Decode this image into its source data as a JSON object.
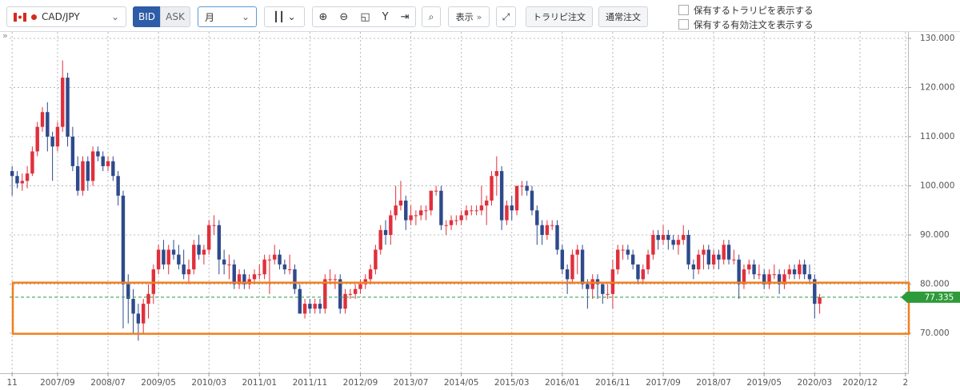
{
  "toolbar": {
    "pair": "CAD/JPY",
    "bid": "BID",
    "ask": "ASK",
    "period": "月",
    "display": "表示",
    "trarep_order": "トラリピ注文",
    "normal_order": "通常注文",
    "show_trarep": "保有するトラリピを表示する",
    "show_orders": "保有する有効注文を表示する",
    "collapse": "»"
  },
  "chart_data": {
    "type": "candlestick",
    "categories": [
      "11",
      null,
      null,
      null,
      null,
      null,
      null,
      null,
      null,
      "2007/09",
      null,
      null,
      null,
      null,
      null,
      null,
      null,
      null,
      null,
      "2008/07",
      null,
      null,
      null,
      null,
      null,
      null,
      null,
      null,
      null,
      "2009/05",
      null,
      null,
      null,
      null,
      null,
      null,
      null,
      null,
      null,
      "2010/03",
      null,
      null,
      null,
      null,
      null,
      null,
      null,
      null,
      null,
      "2011/01",
      null,
      null,
      null,
      null,
      null,
      null,
      null,
      null,
      null,
      "2011/11",
      null,
      null,
      null,
      null,
      null,
      null,
      null,
      null,
      null,
      "2012/09",
      null,
      null,
      null,
      null,
      null,
      null,
      null,
      null,
      null,
      "2013/07",
      null,
      null,
      null,
      null,
      null,
      null,
      null,
      null,
      null,
      "2014/05",
      null,
      null,
      null,
      null,
      null,
      null,
      null,
      null,
      null,
      "2015/03",
      null,
      null,
      null,
      null,
      null,
      null,
      null,
      null,
      null,
      "2016/01",
      null,
      null,
      null,
      null,
      null,
      null,
      null,
      null,
      null,
      "2016/11",
      null,
      null,
      null,
      null,
      null,
      null,
      null,
      null,
      null,
      "2017/09",
      null,
      null,
      null,
      null,
      null,
      null,
      null,
      null,
      null,
      "2018/07",
      null,
      null,
      null,
      null,
      null,
      null,
      null,
      null,
      null,
      "2019/05",
      null,
      null,
      null,
      null,
      null,
      null,
      null,
      null,
      null,
      "2020/03",
      null,
      null,
      null,
      null,
      null,
      null,
      null,
      null,
      "2020/12",
      null,
      null,
      null,
      null,
      null,
      null,
      null,
      null,
      "2"
    ],
    "ohlc": [
      [
        103,
        104,
        98,
        102
      ],
      [
        102,
        103,
        99.5,
        100.5
      ],
      [
        100.5,
        102.5,
        99,
        101
      ],
      [
        101,
        104,
        99.5,
        102.5
      ],
      [
        102.5,
        108,
        102,
        107
      ],
      [
        107,
        113,
        106,
        112
      ],
      [
        112,
        116,
        111,
        115
      ],
      [
        115,
        117,
        107,
        110
      ],
      [
        110,
        111,
        101,
        108
      ],
      [
        108,
        113,
        107,
        112
      ],
      [
        112,
        125.5,
        111,
        122
      ],
      [
        122,
        123,
        108,
        110
      ],
      [
        110,
        112,
        103,
        104
      ],
      [
        104,
        106,
        98,
        99
      ],
      [
        99,
        106,
        98,
        105
      ],
      [
        105,
        106,
        99,
        101
      ],
      [
        101,
        108,
        100,
        107
      ],
      [
        107,
        108,
        105,
        106
      ],
      [
        106,
        107,
        103,
        104
      ],
      [
        104,
        106,
        103,
        105
      ],
      [
        105,
        106,
        101,
        102
      ],
      [
        102,
        103,
        96,
        98
      ],
      [
        98,
        99,
        71,
        80
      ],
      [
        80,
        82,
        72,
        77
      ],
      [
        77,
        79,
        70,
        74
      ],
      [
        74,
        76,
        68.5,
        72
      ],
      [
        72,
        77,
        70,
        76
      ],
      [
        76,
        80,
        73,
        78
      ],
      [
        78,
        84,
        76,
        83
      ],
      [
        83,
        88,
        82,
        87
      ],
      [
        87,
        89,
        83,
        84
      ],
      [
        84,
        88,
        82,
        87
      ],
      [
        87,
        89,
        85,
        86
      ],
      [
        86,
        88,
        83,
        84
      ],
      [
        84,
        87,
        81,
        82
      ],
      [
        82,
        85,
        80,
        83
      ],
      [
        83,
        89,
        82,
        88
      ],
      [
        88,
        90,
        85,
        86
      ],
      [
        86,
        88,
        84,
        87
      ],
      [
        87,
        93,
        86,
        92
      ],
      [
        92,
        94,
        90,
        92
      ],
      [
        92,
        93,
        82,
        85
      ],
      [
        85,
        87,
        82,
        84
      ],
      [
        84,
        86,
        81,
        84
      ],
      [
        84,
        85,
        79,
        80
      ],
      [
        80,
        83,
        79,
        82
      ],
      [
        82,
        83,
        79,
        80
      ],
      [
        80,
        82,
        79,
        81
      ],
      [
        81,
        83,
        80,
        82
      ],
      [
        82,
        84,
        81,
        82
      ],
      [
        82,
        86,
        81,
        85
      ],
      [
        85,
        86,
        78,
        85
      ],
      [
        85,
        88,
        84,
        86
      ],
      [
        86,
        87,
        83,
        84
      ],
      [
        84,
        85,
        82,
        83
      ],
      [
        83,
        86,
        82,
        83
      ],
      [
        83,
        84,
        78,
        79
      ],
      [
        79,
        80,
        74,
        74
      ],
      [
        74,
        77,
        73,
        76
      ],
      [
        76,
        77,
        74,
        75
      ],
      [
        75,
        77,
        74,
        76
      ],
      [
        76,
        77,
        74,
        75
      ],
      [
        75,
        82,
        74,
        81
      ],
      [
        81,
        83,
        80,
        81
      ],
      [
        81,
        82,
        79,
        81
      ],
      [
        81,
        82,
        74,
        75
      ],
      [
        75,
        79,
        74,
        78
      ],
      [
        78,
        79,
        77,
        78
      ],
      [
        78,
        80,
        77,
        79
      ],
      [
        79,
        81,
        78,
        80
      ],
      [
        80,
        82,
        79,
        81
      ],
      [
        81,
        84,
        80,
        83
      ],
      [
        83,
        88,
        82,
        87
      ],
      [
        87,
        92,
        86,
        91
      ],
      [
        91,
        93,
        88,
        90
      ],
      [
        90,
        95,
        88,
        94
      ],
      [
        94,
        100,
        93,
        96
      ],
      [
        96,
        101,
        95,
        97
      ],
      [
        97,
        98,
        91,
        93
      ],
      [
        93,
        96,
        92,
        94
      ],
      [
        94,
        95,
        92,
        94
      ],
      [
        94,
        96,
        93,
        95
      ],
      [
        95,
        96,
        93,
        95
      ],
      [
        95,
        99,
        94,
        99
      ],
      [
        99,
        100,
        98,
        99
      ],
      [
        99,
        100,
        91,
        92
      ],
      [
        92,
        93,
        90,
        92
      ],
      [
        92,
        94,
        91,
        93
      ],
      [
        93,
        94,
        92,
        93
      ],
      [
        93,
        95,
        92,
        94
      ],
      [
        94,
        96,
        93,
        95
      ],
      [
        95,
        96,
        94,
        95
      ],
      [
        95,
        96,
        94,
        95
      ],
      [
        95,
        100,
        94,
        96
      ],
      [
        96,
        98,
        92,
        97
      ],
      [
        97,
        103,
        96,
        102
      ],
      [
        102,
        106,
        98,
        103
      ],
      [
        103,
        104,
        91,
        93
      ],
      [
        93,
        97,
        92,
        96
      ],
      [
        96,
        98,
        93,
        95
      ],
      [
        95,
        100,
        94,
        100
      ],
      [
        100,
        101,
        98,
        100
      ],
      [
        100,
        101,
        98,
        99
      ],
      [
        99,
        100,
        94,
        95
      ],
      [
        95,
        96,
        88,
        92
      ],
      [
        92,
        93,
        88,
        90
      ],
      [
        90,
        93,
        89,
        92
      ],
      [
        92,
        93,
        91,
        92
      ],
      [
        92,
        93,
        86,
        87
      ],
      [
        87,
        88,
        82,
        83
      ],
      [
        83,
        84,
        78,
        81
      ],
      [
        81,
        87,
        80,
        86
      ],
      [
        86,
        88,
        82,
        87
      ],
      [
        87,
        88,
        79,
        80
      ],
      [
        80,
        81,
        75,
        79
      ],
      [
        79,
        82,
        77,
        81
      ],
      [
        81,
        82,
        77,
        80
      ],
      [
        80,
        80,
        76,
        78
      ],
      [
        78,
        80,
        77,
        78
      ],
      [
        78,
        85,
        75,
        83
      ],
      [
        83,
        88,
        82,
        87
      ],
      [
        87,
        88,
        85,
        87
      ],
      [
        87,
        88,
        85,
        86
      ],
      [
        86,
        87,
        83,
        84
      ],
      [
        84,
        84,
        80,
        81
      ],
      [
        81,
        84,
        80,
        83
      ],
      [
        83,
        87,
        82,
        86
      ],
      [
        86,
        91,
        85,
        90
      ],
      [
        90,
        91,
        87,
        89
      ],
      [
        89,
        92,
        88,
        90
      ],
      [
        90,
        91,
        87,
        89
      ],
      [
        89,
        90,
        87,
        88
      ],
      [
        88,
        90,
        86,
        89
      ],
      [
        89,
        92,
        88,
        90
      ],
      [
        90,
        91,
        83,
        84
      ],
      [
        84,
        85,
        81,
        83
      ],
      [
        83,
        87,
        82,
        86
      ],
      [
        86,
        88,
        83,
        87
      ],
      [
        87,
        88,
        83,
        84
      ],
      [
        84,
        87,
        83,
        86
      ],
      [
        86,
        87,
        83,
        85
      ],
      [
        85,
        89,
        84,
        88
      ],
      [
        88,
        89,
        84,
        85
      ],
      [
        85,
        87,
        84,
        85
      ],
      [
        85,
        86,
        77,
        80
      ],
      [
        80,
        84,
        79,
        83
      ],
      [
        83,
        85,
        82,
        84
      ],
      [
        84,
        85,
        81,
        82
      ],
      [
        82,
        84,
        81,
        82
      ],
      [
        82,
        83,
        79,
        80
      ],
      [
        80,
        83,
        79,
        82
      ],
      [
        82,
        84,
        81,
        82
      ],
      [
        82,
        83,
        78,
        80
      ],
      [
        80,
        83,
        79,
        82
      ],
      [
        82,
        84,
        81,
        83
      ],
      [
        83,
        84,
        81,
        82
      ],
      [
        82,
        85,
        81,
        84
      ],
      [
        84,
        85,
        81,
        82
      ],
      [
        82,
        84,
        80,
        81
      ],
      [
        81,
        82,
        73,
        76
      ],
      [
        76,
        78,
        74,
        77.3
      ]
    ],
    "up_color": "#e0303c",
    "down_color": "#2e4a8c",
    "ylim": [
      62.2,
      131.3
    ],
    "yticks": [
      {
        "value": 70,
        "label": "70.000"
      },
      {
        "value": 80,
        "label": "80.000"
      },
      {
        "value": 90,
        "label": "90.000"
      },
      {
        "value": 100,
        "label": "100.000"
      },
      {
        "value": 110,
        "label": "110.000"
      },
      {
        "value": 120,
        "label": "120.000"
      },
      {
        "value": 130,
        "label": "130.000"
      }
    ],
    "grid": true,
    "last_price": 77.335,
    "highlight_range": [
      69.9,
      80.3
    ]
  }
}
